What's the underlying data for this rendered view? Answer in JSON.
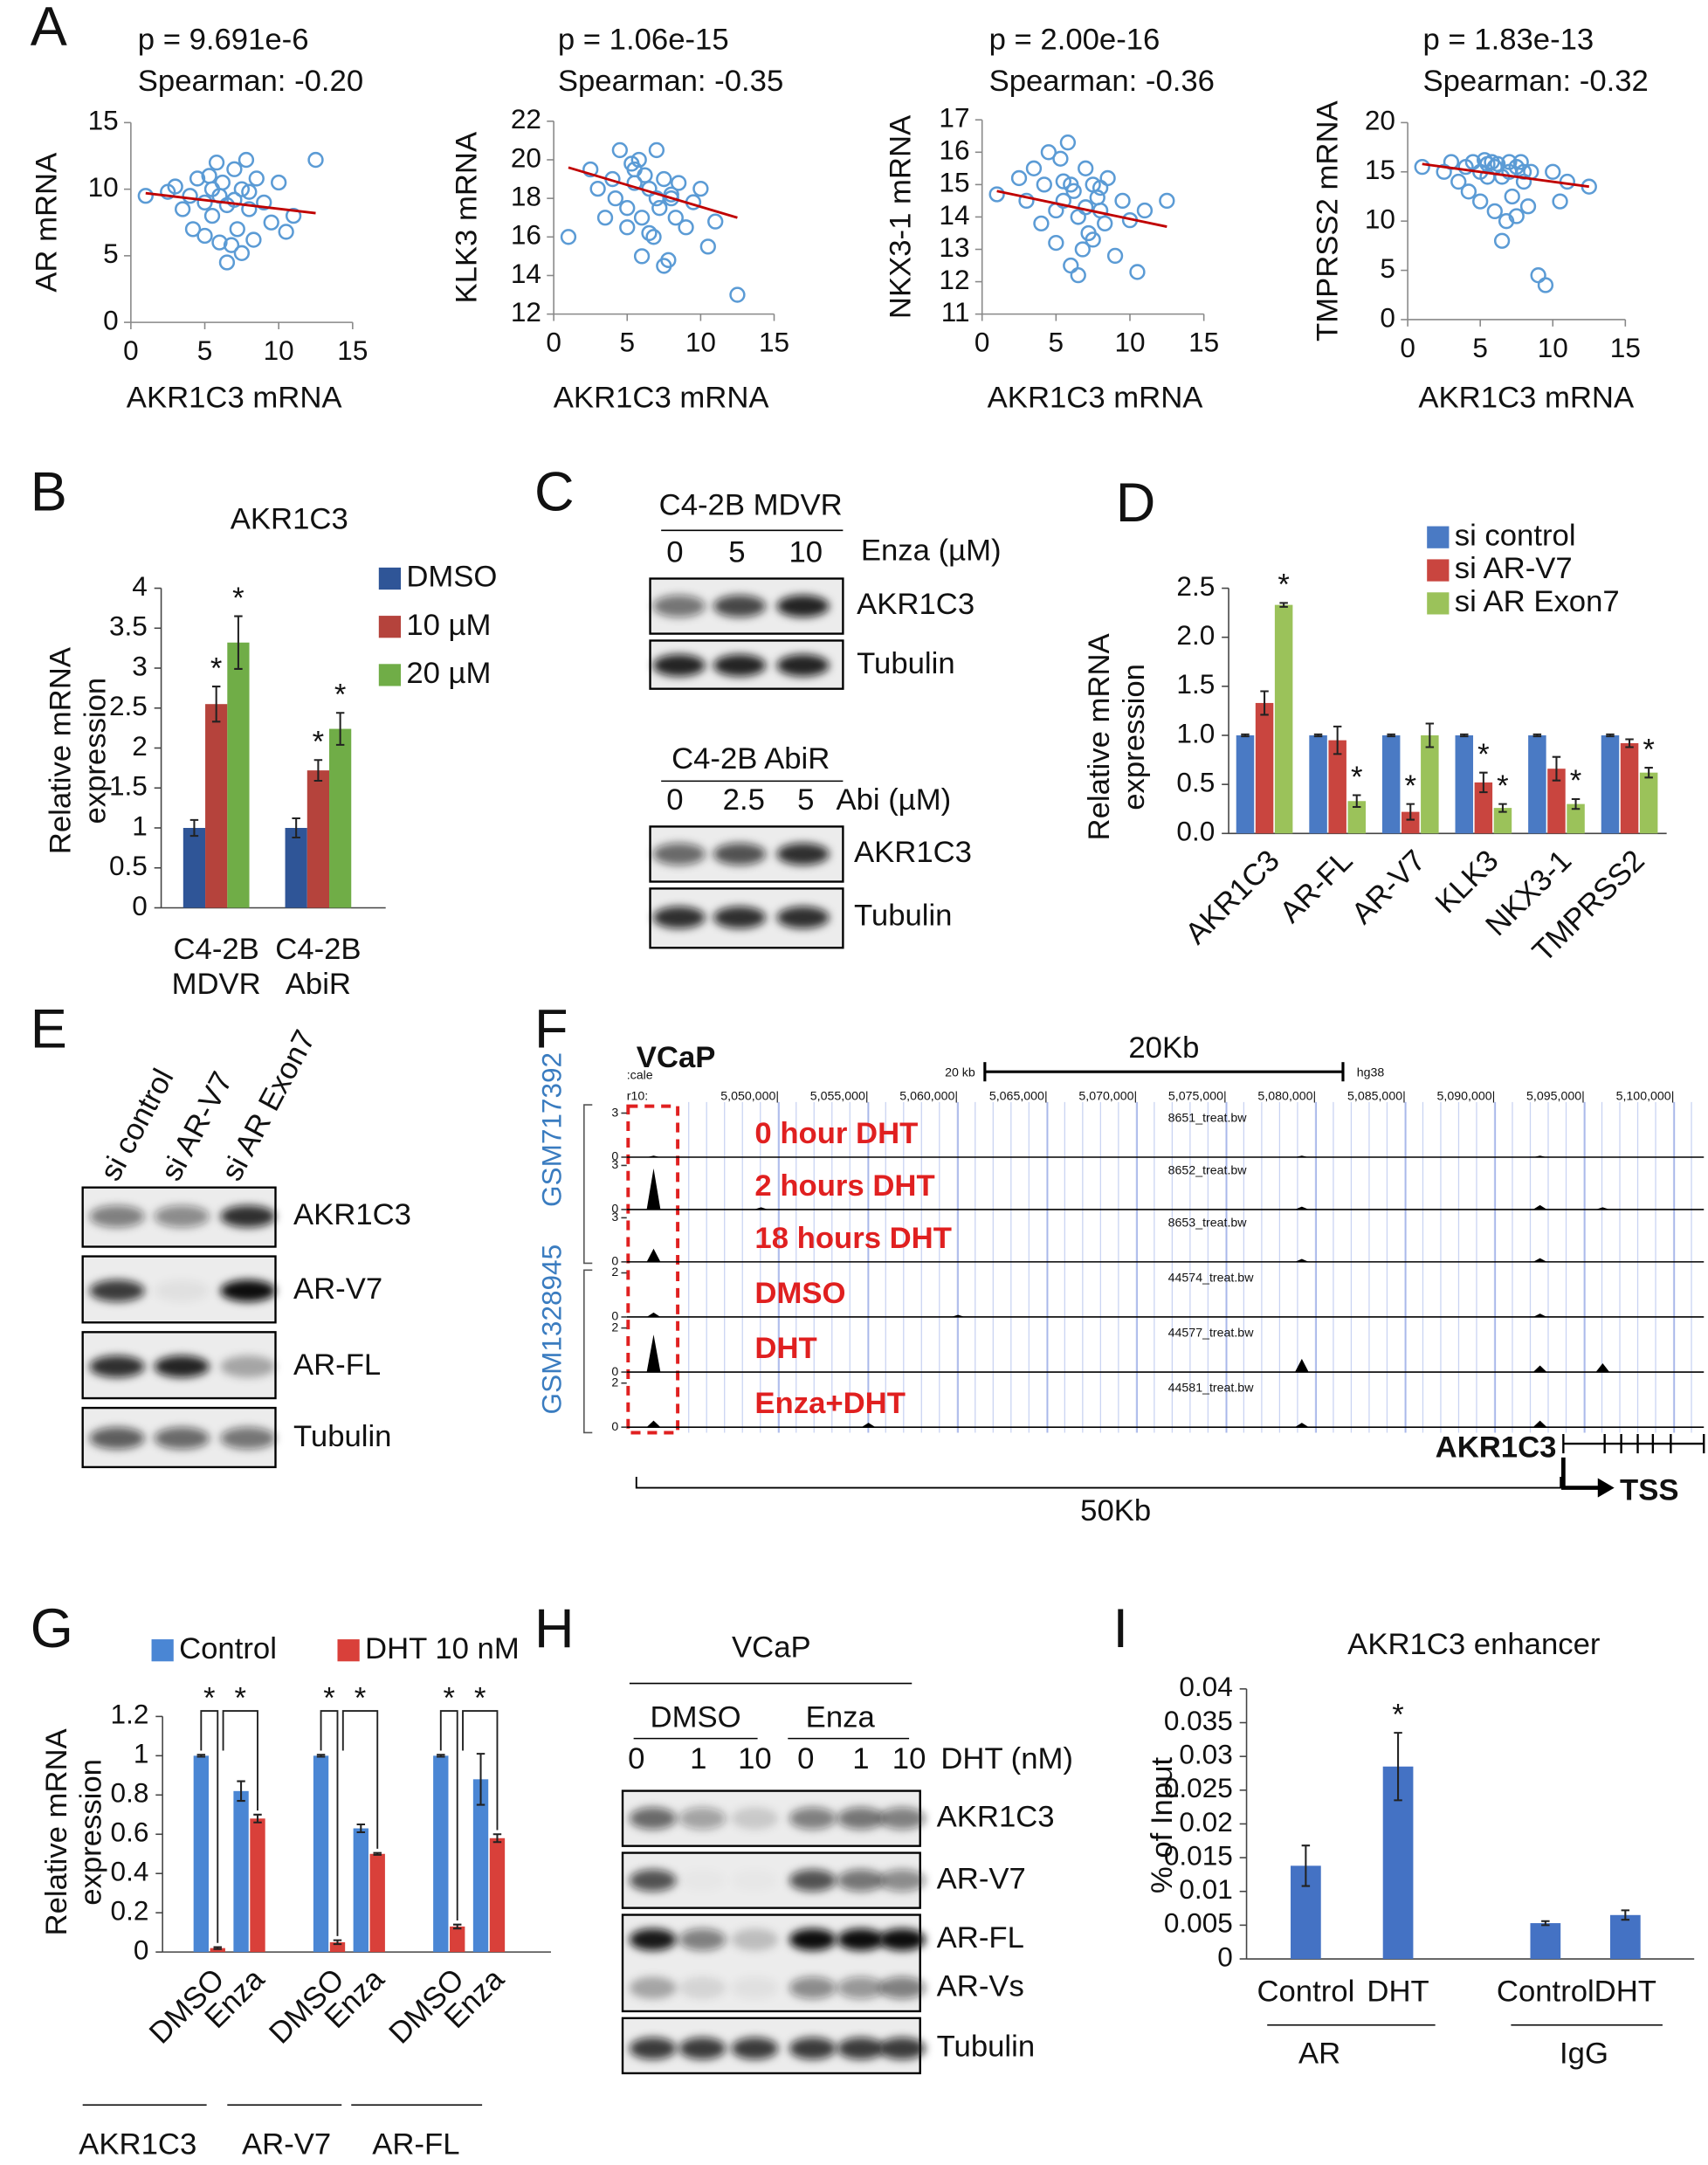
{
  "panel_labels": [
    "A",
    "B",
    "C",
    "D",
    "E",
    "F",
    "G",
    "H",
    "I"
  ],
  "chart_data": [
    {
      "type": "scatter",
      "title": "p = 9.691e-6",
      "subtitle": "Spearman: -0.20",
      "xlabel": "AKR1C3 mRNA",
      "ylabel": "AR mRNA",
      "xlim": [
        0,
        15
      ],
      "ylim": [
        0,
        15
      ],
      "xticks": [
        0,
        5,
        10,
        15
      ],
      "yticks": [
        0,
        5,
        10,
        15
      ],
      "color": "#5b9bd5",
      "x": [
        1.0,
        2.5,
        3,
        3.5,
        4,
        4.2,
        4.5,
        5,
        5,
        5.3,
        5.5,
        5.8,
        6,
        6,
        6.2,
        6.5,
        6.8,
        7,
        7,
        7.2,
        7.5,
        7.8,
        8,
        8.3,
        8.5,
        9,
        9.5,
        10,
        10.5,
        11,
        12.5,
        6.5,
        7.5,
        5.5,
        8
      ],
      "values": [
        9.5,
        9.8,
        10.2,
        8.5,
        9.5,
        7,
        10.8,
        9,
        6.5,
        11,
        8,
        12,
        9.5,
        6,
        10.5,
        8.8,
        5.8,
        11.5,
        9.2,
        7,
        10,
        12.2,
        8.5,
        6.2,
        10.8,
        9,
        7.5,
        10.5,
        6.8,
        8,
        12.2,
        4.5,
        5.2,
        10,
        9.8
      ],
      "trendline": {
        "color": "#c00000",
        "x": [
          1,
          12.5
        ],
        "y": [
          9.7,
          8.2
        ]
      }
    },
    {
      "type": "scatter",
      "title": "p = 1.06e-15",
      "subtitle": "Spearman: -0.35",
      "xlabel": "AKR1C3 mRNA",
      "ylabel": "KLK3 mRNA",
      "xlim": [
        0,
        15
      ],
      "ylim": [
        12,
        22
      ],
      "xticks": [
        0,
        5,
        10,
        15
      ],
      "yticks": [
        12,
        14,
        16,
        18,
        20,
        22
      ],
      "color": "#5b9bd5",
      "x": [
        1.0,
        2.5,
        3,
        3.5,
        4,
        4.2,
        4.5,
        5,
        5,
        5.3,
        5.5,
        5.8,
        6,
        6,
        6.2,
        6.5,
        6.8,
        7,
        7,
        7.2,
        7.5,
        7.8,
        8,
        8.3,
        8.5,
        9,
        9.5,
        10,
        10.5,
        11,
        12.5,
        6.5,
        7.5,
        5.5,
        8
      ],
      "values": [
        16,
        19.5,
        18.5,
        17,
        19,
        18,
        20.5,
        17.5,
        16.5,
        19.8,
        18.8,
        20,
        17,
        15,
        19.2,
        18.5,
        16,
        20.5,
        18,
        17.5,
        19,
        14.8,
        18.2,
        17,
        18.8,
        16.5,
        17.8,
        18.5,
        15.5,
        16.8,
        13,
        16.2,
        14.5,
        19.5,
        18
      ],
      "trendline": {
        "color": "#c00000",
        "x": [
          1,
          12.5
        ],
        "y": [
          19.6,
          17.0
        ]
      }
    },
    {
      "type": "scatter",
      "title": "p = 2.00e-16",
      "subtitle": "Spearman: -0.36",
      "xlabel": "AKR1C3 mRNA",
      "ylabel": "NKX3-1 mRNA",
      "xlim": [
        0,
        15
      ],
      "ylim": [
        11,
        17
      ],
      "xticks": [
        0,
        5,
        10,
        15
      ],
      "yticks": [
        11,
        12,
        13,
        14,
        15,
        16,
        17
      ],
      "color": "#5b9bd5",
      "x": [
        1.0,
        2.5,
        3,
        3.5,
        4,
        4.2,
        4.5,
        5,
        5,
        5.3,
        5.5,
        5.8,
        6,
        6,
        6.2,
        6.5,
        6.8,
        7,
        7,
        7.2,
        7.5,
        7.8,
        8,
        8.3,
        8.5,
        9,
        9.5,
        10,
        10.5,
        11,
        12.5,
        6.5,
        7.5,
        5.5,
        8
      ],
      "values": [
        14.7,
        15.2,
        14.5,
        15.5,
        13.8,
        15,
        16,
        14.2,
        13.2,
        15.8,
        14.5,
        16.3,
        15,
        12.5,
        14.8,
        14,
        13,
        15.5,
        14.3,
        13.5,
        15,
        14.6,
        14.2,
        13.8,
        15.2,
        12.8,
        14.5,
        13.9,
        12.3,
        14.2,
        14.5,
        12.2,
        13.3,
        15.1,
        14.9
      ],
      "trendline": {
        "color": "#c00000",
        "x": [
          1,
          12.5
        ],
        "y": [
          14.8,
          13.7
        ]
      }
    },
    {
      "type": "scatter",
      "title": "p = 1.83e-13",
      "subtitle": "Spearman: -0.32",
      "xlabel": "AKR1C3 mRNA",
      "ylabel": "TMPRSS2 mRNA",
      "xlim": [
        0,
        15
      ],
      "ylim": [
        0,
        20
      ],
      "xticks": [
        0,
        5,
        10,
        15
      ],
      "yticks": [
        0,
        5,
        10,
        15,
        20
      ],
      "color": "#5b9bd5",
      "x": [
        1.0,
        2.5,
        3,
        3.5,
        4,
        4.2,
        4.5,
        5,
        5,
        5.3,
        5.5,
        5.8,
        6,
        6,
        6.2,
        6.5,
        6.8,
        7,
        7,
        7.2,
        7.5,
        7.8,
        8,
        8.3,
        8.5,
        9,
        9.5,
        10,
        10.5,
        11,
        12.5,
        6.5,
        7.5,
        5.5,
        8
      ],
      "values": [
        15.5,
        15,
        16,
        14,
        15.5,
        13,
        16,
        15,
        12,
        16.2,
        14.5,
        16,
        15.5,
        11,
        15.8,
        14.5,
        10,
        16,
        15,
        12.5,
        15.5,
        16,
        14,
        11.5,
        15,
        4.5,
        3.5,
        15,
        12,
        14,
        13.5,
        8,
        10.5,
        15.8,
        15
      ],
      "trendline": {
        "color": "#c00000",
        "x": [
          1,
          12.5
        ],
        "y": [
          15.8,
          13.5
        ]
      }
    },
    {
      "type": "bar",
      "title": "AKR1C3",
      "ylabel": "Relative mRNA\nexpression",
      "categories": [
        "C4-2B\nMDVR",
        "C4-2B\nAbiR"
      ],
      "ylim": [
        0,
        4
      ],
      "yticks": [
        0,
        0.5,
        1,
        1.5,
        2,
        2.5,
        3,
        3.5,
        4
      ],
      "series": [
        {
          "name": "DMSO",
          "color": "#2f5597",
          "values": [
            1,
            1
          ],
          "errors": [
            0.1,
            0.12
          ],
          "markers": [
            null,
            null
          ]
        },
        {
          "name": "10 µM",
          "color": "#b5433c",
          "values": [
            2.55,
            1.72
          ],
          "errors": [
            0.22,
            0.13
          ],
          "markers": [
            "*",
            "*"
          ]
        },
        {
          "name": "20 µM",
          "color": "#70ad47",
          "values": [
            3.32,
            2.24
          ],
          "errors": [
            0.33,
            0.2
          ],
          "markers": [
            "*",
            "*"
          ]
        }
      ]
    },
    {
      "type": "bar",
      "ylabel": "Relative mRNA\nexpression",
      "categories": [
        "AKR1C3",
        "AR-FL",
        "AR-V7",
        "KLK3",
        "NKX3-1",
        "TMPRSS2"
      ],
      "ylim": [
        0,
        2.5
      ],
      "yticks": [
        {
          "value": 0,
          "label": "0.0"
        },
        {
          "value": 0.5,
          "label": "0.5"
        },
        {
          "value": 1,
          "label": "1.0"
        },
        {
          "value": 1.5,
          "label": "1.5"
        },
        {
          "value": 2,
          "label": "2.0"
        },
        {
          "value": 2.5,
          "label": "2.5"
        }
      ],
      "series": [
        {
          "name": "si control",
          "color": "#4a7ac4",
          "values": [
            1,
            1,
            1,
            1,
            1,
            1
          ],
          "errors": [
            0.01,
            0.01,
            0.01,
            0.01,
            0.01,
            0.01
          ],
          "markers": [
            null,
            null,
            null,
            null,
            null,
            null
          ]
        },
        {
          "name": "si AR-V7",
          "color": "#c9453f",
          "values": [
            1.33,
            0.95,
            0.22,
            0.52,
            0.66,
            0.92
          ],
          "errors": [
            0.12,
            0.14,
            0.08,
            0.1,
            0.12,
            0.04
          ],
          "markers": [
            null,
            null,
            "*",
            "*",
            null,
            null
          ]
        },
        {
          "name": "si AR Exon7",
          "color": "#9bc25a",
          "values": [
            2.33,
            0.33,
            1.0,
            0.26,
            0.3,
            0.62
          ],
          "errors": [
            0.02,
            0.06,
            0.12,
            0.04,
            0.05,
            0.05
          ],
          "markers": [
            "*",
            "*",
            null,
            "*",
            "*",
            "*"
          ]
        }
      ]
    },
    {
      "type": "bar",
      "ylabel": "Relative mRNA\nexpression",
      "categories": [
        "DMSO",
        "Enza",
        "DMSO",
        "Enza",
        "DMSO",
        "Enza"
      ],
      "groups": [
        "AKR1C3",
        "AR-V7",
        "AR-FL"
      ],
      "ylim": [
        0,
        1.2
      ],
      "yticks": [
        0,
        0.2,
        0.4,
        0.6,
        0.8,
        1,
        1.2
      ],
      "series": [
        {
          "name": "Control",
          "color": "#4a86d4",
          "values": [
            1,
            0.82,
            1,
            0.63,
            1,
            0.88
          ],
          "errors": [
            0.005,
            0.05,
            0.005,
            0.02,
            0.005,
            0.13
          ]
        },
        {
          "name": "DHT 10 nM",
          "color": "#d9403a",
          "values": [
            0.02,
            0.68,
            0.05,
            0.5,
            0.13,
            0.58
          ],
          "errors": [
            0.005,
            0.02,
            0.01,
            0.005,
            0.01,
            0.02
          ]
        }
      ],
      "brackets": [
        "*",
        "*",
        "*",
        "*",
        "*",
        "*"
      ]
    },
    {
      "type": "bar",
      "title": "AKR1C3 enhancer",
      "ylabel": "% of Input",
      "categories": [
        "Control",
        "DHT",
        "Control",
        "DHT"
      ],
      "groups": [
        "AR",
        "IgG"
      ],
      "ylim": [
        0,
        0.04
      ],
      "yticks": [
        0,
        0.005,
        0.01,
        0.015,
        0.02,
        0.025,
        0.03,
        0.035,
        0.04
      ],
      "color": "#4472c4",
      "values": [
        0.0138,
        0.0285,
        0.0053,
        0.0065
      ],
      "errors": [
        0.003,
        0.005,
        0.0003,
        0.0007
      ],
      "markers": [
        null,
        "*",
        null,
        null
      ]
    }
  ],
  "blots": [
    {
      "title": "C4-2B MDVR",
      "lanes": [
        0,
        5,
        10
      ],
      "treatment": "Enza (µM)",
      "rows": [
        {
          "label": "AKR1C3",
          "bands": [
            0.55,
            0.75,
            0.9
          ]
        },
        {
          "label": "Tubulin",
          "bands": [
            0.9,
            0.9,
            0.9
          ]
        }
      ]
    },
    {
      "title": "C4-2B AbiR",
      "lanes": [
        0,
        2.5,
        5
      ],
      "treatment": "Abi (µM)",
      "rows": [
        {
          "label": "AKR1C3",
          "bands": [
            0.6,
            0.7,
            0.85
          ]
        },
        {
          "label": "Tubulin",
          "bands": [
            0.85,
            0.85,
            0.85
          ]
        }
      ]
    },
    {
      "lanes": [
        "si control",
        "si AR-V7",
        "si AR Exon7"
      ],
      "rows": [
        {
          "label": "AKR1C3",
          "bands": [
            0.5,
            0.45,
            0.85
          ]
        },
        {
          "label": "AR-V7",
          "bands": [
            0.8,
            0.05,
            1.0
          ]
        },
        {
          "label": "AR-FL",
          "bands": [
            0.85,
            0.9,
            0.3
          ]
        },
        {
          "label": "Tubulin",
          "bands": [
            0.65,
            0.6,
            0.55
          ]
        }
      ]
    },
    {
      "title": "VCaP",
      "lane_groups": [
        "DMSO",
        "Enza"
      ],
      "lanes": [
        0,
        1,
        10,
        0,
        1,
        10
      ],
      "treatment": "DHT (nM)",
      "rows": [
        {
          "label": "AKR1C3",
          "bands": [
            0.6,
            0.35,
            0.15,
            0.5,
            0.55,
            0.5
          ]
        },
        {
          "label": "AR-V7",
          "bands": [
            0.7,
            0.02,
            0.02,
            0.7,
            0.55,
            0.45
          ]
        },
        {
          "label": "AR-FL",
          "bands": [
            0.95,
            0.5,
            0.2,
            1,
            1,
            1
          ]
        },
        {
          "label": "AR-Vs",
          "bands": [
            0.3,
            0.1,
            0.05,
            0.45,
            0.4,
            0.5
          ]
        },
        {
          "label": "Tubulin",
          "bands": [
            0.8,
            0.8,
            0.8,
            0.8,
            0.8,
            0.8
          ]
        }
      ]
    }
  ],
  "tracks": {
    "cell_line": "VCaP",
    "scale_text": ":cale",
    "chrom_text": "r10:",
    "ruler_text": "20 kb",
    "assembly": "hg38",
    "scale_bar": "20Kb",
    "xlim": [
      5041500,
      5101650
    ],
    "positions": [
      {
        "value": 5050000,
        "label": "5,050,000|"
      },
      {
        "value": 5055000,
        "label": "5,055,000|"
      },
      {
        "value": 5060000,
        "label": "5,060,000|"
      },
      {
        "value": 5065000,
        "label": "5,065,000|"
      },
      {
        "value": 5070000,
        "label": "5,070,000|"
      },
      {
        "value": 5075000,
        "label": "5,075,000|"
      },
      {
        "value": 5080000,
        "label": "5,080,000|"
      },
      {
        "value": 5085000,
        "label": "5,085,000|"
      },
      {
        "value": 5090000,
        "label": "5,090,000|"
      },
      {
        "value": 5095000,
        "label": "5,095,000|"
      },
      {
        "value": 5100000,
        "label": "5,100,000|"
      }
    ],
    "datasets": [
      "GSM717392",
      "GSM1328945"
    ],
    "series": [
      {
        "name": "0 hour DHT",
        "file": "8651_treat.bw",
        "ylim": [
          0,
          3
        ],
        "yticks": [
          0,
          3
        ],
        "x": [
          5043000,
          5079200,
          5092500
        ],
        "values": [
          0.1,
          0.1,
          0.1
        ]
      },
      {
        "name": "2 hours DHT",
        "file": "8652_treat.bw",
        "ylim": [
          0,
          3
        ],
        "yticks": [
          0,
          3
        ],
        "x": [
          5043000,
          5049000,
          5079200,
          5092500,
          5096000
        ],
        "values": [
          2.8,
          0.15,
          0.2,
          0.3,
          0.15
        ]
      },
      {
        "name": "18 hours DHT",
        "file": "8653_treat.bw",
        "ylim": [
          0,
          3
        ],
        "yticks": [
          0,
          3
        ],
        "x": [
          5043000,
          5079200,
          5092500
        ],
        "values": [
          0.9,
          0.2,
          0.25
        ]
      },
      {
        "name": "DMSO",
        "file": "44574_treat.bw",
        "ylim": [
          0,
          2
        ],
        "yticks": [
          0,
          2
        ],
        "x": [
          5043000,
          5060000,
          5092500
        ],
        "values": [
          0.2,
          0.1,
          0.15
        ]
      },
      {
        "name": "DHT",
        "file": "44577_treat.bw",
        "ylim": [
          0,
          2
        ],
        "yticks": [
          0,
          2
        ],
        "x": [
          5043000,
          5079200,
          5092500,
          5096000
        ],
        "values": [
          1.7,
          0.6,
          0.3,
          0.4
        ]
      },
      {
        "name": "Enza+DHT",
        "file": "44581_treat.bw",
        "ylim": [
          0,
          2
        ],
        "yticks": [
          0,
          2
        ],
        "x": [
          5043000,
          5055000,
          5079200,
          5092500
        ],
        "values": [
          0.3,
          0.2,
          0.2,
          0.3
        ]
      }
    ],
    "gene": "AKR1C3",
    "tss": "TSS",
    "span": "50Kb"
  }
}
